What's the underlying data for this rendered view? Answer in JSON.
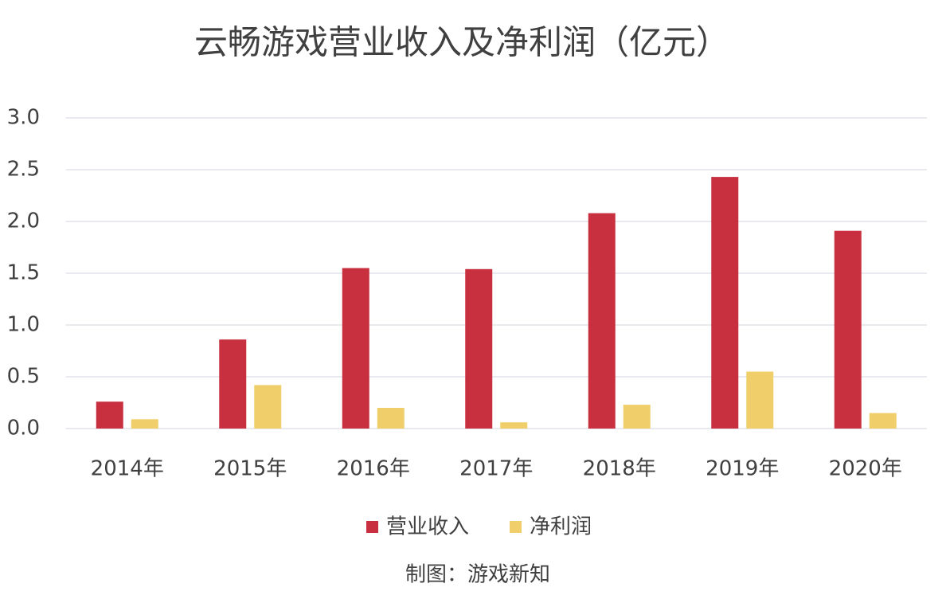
{
  "chart_data": {
    "type": "bar",
    "title": "云畅游戏营业收入及净利润（亿元）",
    "categories": [
      "2014年",
      "2015年",
      "2016年",
      "2017年",
      "2018年",
      "2019年",
      "2020年"
    ],
    "series": [
      {
        "name": "营业收入",
        "color": "#c8303f",
        "values": [
          0.26,
          0.86,
          1.55,
          1.54,
          2.08,
          2.43,
          1.91
        ]
      },
      {
        "name": "净利润",
        "color": "#f0cf6a",
        "values": [
          0.09,
          0.42,
          0.2,
          0.06,
          0.23,
          0.55,
          0.15
        ]
      }
    ],
    "ylim": [
      0,
      3
    ],
    "yticks": [
      {
        "value": 0,
        "label": "0.0"
      },
      0.5,
      {
        "value": 1,
        "label": "1.0"
      },
      1.5,
      {
        "value": 2,
        "label": "2.0"
      },
      2.5,
      {
        "value": 3,
        "label": "3.0"
      }
    ],
    "grid": true,
    "legend": "bottom",
    "note": "制图：游戏新知"
  }
}
